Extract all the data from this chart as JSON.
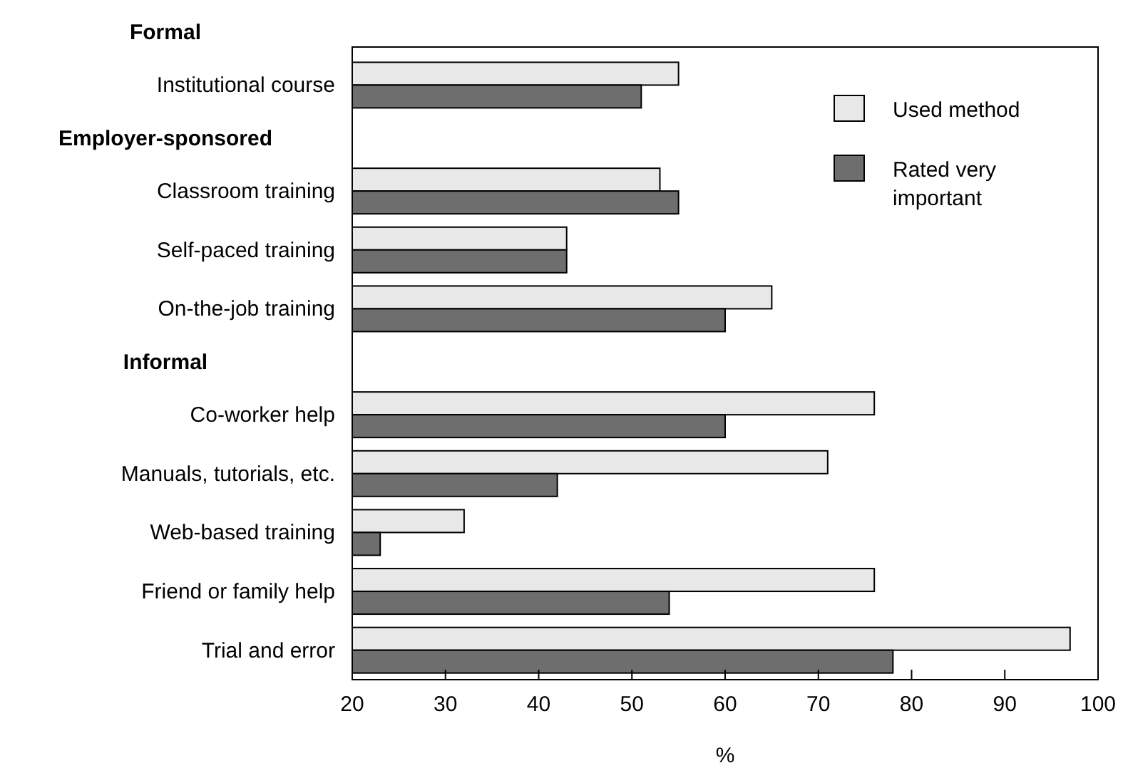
{
  "chart_data": {
    "type": "bar",
    "orientation": "horizontal",
    "xlabel": "%",
    "annotations": [
      "Formal",
      "Employer-sponsored",
      "Informal"
    ],
    "categories": [
      null,
      "Institutional course",
      null,
      "Classroom training",
      "Self-paced training",
      "On-the-job training",
      null,
      "Co-worker help",
      "Manuals, tutorials, etc.",
      "Web-based training",
      "Friend or family help",
      "Trial and error"
    ],
    "series": [
      {
        "name": "Used method",
        "color": "#e8e8e8",
        "values": [
          null,
          55,
          null,
          53,
          43,
          65,
          null,
          76,
          71,
          32,
          76,
          97
        ]
      },
      {
        "name": "Rated very important",
        "color": "#6e6e6e",
        "values": [
          null,
          51,
          null,
          55,
          43,
          60,
          null,
          60,
          42,
          23,
          54,
          78
        ]
      }
    ],
    "xlim": [
      20,
      100
    ],
    "xticks": [
      20,
      30,
      40,
      50,
      60,
      70,
      80,
      90,
      100
    ],
    "grid": false,
    "legend": "top right"
  }
}
